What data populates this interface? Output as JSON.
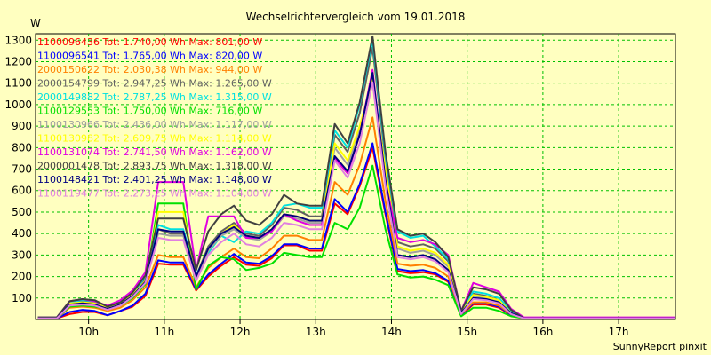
{
  "chart_data": {
    "type": "line",
    "title": "Wechselrichtervergleich vom 19.01.2018",
    "ylabel": "W",
    "xlabel": "",
    "ylim": [
      0,
      1330
    ],
    "xlim": [
      9.3,
      17.75
    ],
    "yticks": [
      100,
      200,
      300,
      400,
      500,
      600,
      700,
      800,
      900,
      1000,
      1100,
      1200,
      1300
    ],
    "xticks": [
      {
        "v": 10,
        "label": "10h"
      },
      {
        "v": 11,
        "label": "11h"
      },
      {
        "v": 12,
        "label": "12h"
      },
      {
        "v": 13,
        "label": "13h"
      },
      {
        "v": 14,
        "label": "14h"
      },
      {
        "v": 15,
        "label": "15h"
      },
      {
        "v": 16,
        "label": "16h"
      },
      {
        "v": 17,
        "label": "17h"
      }
    ],
    "grid": true,
    "legend_position": "top-left",
    "footer": "SunnyReport pinxit",
    "x": [
      9.33,
      9.58,
      9.75,
      9.92,
      10.08,
      10.25,
      10.42,
      10.58,
      10.75,
      10.92,
      11.08,
      11.25,
      11.42,
      11.58,
      11.75,
      11.92,
      12.08,
      12.25,
      12.42,
      12.58,
      12.75,
      12.92,
      13.08,
      13.25,
      13.42,
      13.58,
      13.75,
      13.92,
      14.08,
      14.25,
      14.42,
      14.58,
      14.75,
      14.92,
      15.08,
      15.25,
      15.42,
      15.58,
      15.75,
      15.92,
      16.08,
      16.25,
      16.42,
      16.58,
      16.75,
      16.92,
      17.08,
      17.25,
      17.42,
      17.58,
      17.75
    ],
    "series": [
      {
        "name": "1100096436",
        "tot": "Tot: 1.740,00 Wh",
        "max": "Max: 801,00 W",
        "color": "#FF0000",
        "values": [
          5,
          5,
          25,
          35,
          35,
          20,
          40,
          60,
          110,
          260,
          255,
          255,
          135,
          200,
          250,
          290,
          255,
          250,
          285,
          345,
          345,
          320,
          320,
          540,
          490,
          620,
          800,
          490,
          225,
          215,
          220,
          210,
          175,
          20,
          70,
          70,
          55,
          20,
          5,
          5,
          5,
          5,
          5,
          5,
          5,
          5,
          5,
          5,
          5,
          5,
          5
        ]
      },
      {
        "name": "1100096541",
        "tot": "Tot: 1.765,00 Wh",
        "max": "Max: 820,00 W",
        "color": "#0000FF",
        "values": [
          5,
          5,
          35,
          45,
          40,
          20,
          40,
          65,
          120,
          275,
          265,
          265,
          140,
          210,
          260,
          305,
          265,
          260,
          295,
          350,
          350,
          330,
          330,
          560,
          500,
          630,
          820,
          500,
          235,
          225,
          230,
          215,
          180,
          22,
          75,
          75,
          60,
          22,
          5,
          5,
          5,
          5,
          5,
          5,
          5,
          5,
          5,
          5,
          5,
          5,
          5
        ]
      },
      {
        "name": "2000150622",
        "tot": "Tot: 2.030,38 Wh",
        "max": "Max: 944,00 W",
        "color": "#FF8000",
        "values": [
          5,
          5,
          55,
          60,
          55,
          40,
          55,
          90,
          150,
          300,
          290,
          290,
          150,
          240,
          290,
          330,
          290,
          285,
          330,
          390,
          390,
          370,
          370,
          640,
          580,
          720,
          940,
          550,
          260,
          250,
          255,
          240,
          200,
          25,
          80,
          80,
          65,
          25,
          5,
          5,
          5,
          5,
          5,
          5,
          5,
          5,
          5,
          5,
          5,
          5,
          5
        ]
      },
      {
        "name": "2000154799",
        "tot": "Tot: 2.947,25 Wh",
        "max": "Max: 1.265,00 W",
        "color": "#606060",
        "values": [
          5,
          5,
          80,
          85,
          80,
          55,
          75,
          115,
          190,
          420,
          400,
          400,
          200,
          340,
          410,
          450,
          400,
          390,
          440,
          520,
          510,
          480,
          480,
          860,
          780,
          960,
          1265,
          740,
          360,
          340,
          350,
          330,
          270,
          30,
          120,
          110,
          90,
          35,
          5,
          5,
          5,
          5,
          5,
          5,
          5,
          5,
          5,
          5,
          5,
          5,
          5
        ]
      },
      {
        "name": "2000149882",
        "tot": "Tot: 2.787,25 Wh",
        "max": "Max: 1.315,00 W",
        "color": "#00E0E0",
        "values": [
          10,
          10,
          80,
          90,
          85,
          60,
          80,
          120,
          200,
          440,
          420,
          420,
          210,
          310,
          390,
          360,
          410,
          400,
          450,
          530,
          540,
          520,
          520,
          880,
          800,
          1000,
          1300,
          760,
          410,
          380,
          390,
          340,
          280,
          40,
          130,
          120,
          100,
          40,
          5,
          5,
          5,
          5,
          5,
          5,
          5,
          5,
          5,
          5,
          5,
          5,
          5
        ]
      },
      {
        "name": "1100129553",
        "tot": "Tot: 1.750,00 Wh",
        "max": "Max: 716,00 W",
        "color": "#00E000",
        "values": [
          5,
          5,
          60,
          65,
          60,
          50,
          65,
          100,
          165,
          540,
          540,
          540,
          140,
          250,
          290,
          280,
          230,
          240,
          260,
          310,
          300,
          290,
          290,
          450,
          420,
          520,
          716,
          420,
          210,
          195,
          200,
          185,
          160,
          15,
          55,
          55,
          40,
          15,
          5,
          5,
          5,
          5,
          5,
          5,
          5,
          5,
          5,
          5,
          5,
          5,
          5
        ]
      },
      {
        "name": "1100130966",
        "tot": "Tot: 2.436,00 Wh",
        "max": "Max: 1.117,00 W",
        "color": "#A0A0A0",
        "values": [
          5,
          5,
          70,
          75,
          70,
          50,
          70,
          110,
          175,
          400,
          390,
          390,
          190,
          320,
          390,
          420,
          380,
          370,
          410,
          480,
          470,
          450,
          450,
          800,
          720,
          880,
          1117,
          680,
          330,
          310,
          320,
          300,
          245,
          30,
          110,
          100,
          85,
          30,
          5,
          5,
          5,
          5,
          5,
          5,
          5,
          5,
          5,
          5,
          5,
          5,
          5
        ]
      },
      {
        "name": "1100130982",
        "tot": "Tot: 2.609,75 Wh",
        "max": "Max: 1.114,00 W",
        "color": "#FFFF00",
        "values": [
          5,
          5,
          75,
          80,
          75,
          55,
          75,
          115,
          180,
          500,
          500,
          500,
          200,
          330,
          400,
          440,
          390,
          380,
          420,
          490,
          480,
          460,
          460,
          820,
          740,
          900,
          1114,
          700,
          340,
          320,
          330,
          310,
          255,
          30,
          115,
          105,
          90,
          30,
          5,
          5,
          5,
          5,
          5,
          5,
          5,
          5,
          5,
          5,
          5,
          5,
          5
        ]
      },
      {
        "name": "1100131074",
        "tot": "Tot: 2.741,50 Wh",
        "max": "Max: 1.162,00 W",
        "color": "#E000E0",
        "values": [
          10,
          10,
          85,
          95,
          85,
          65,
          90,
          135,
          220,
          640,
          640,
          640,
          230,
          480,
          480,
          480,
          380,
          380,
          410,
          490,
          460,
          440,
          440,
          750,
          680,
          860,
          1162,
          640,
          380,
          360,
          370,
          350,
          300,
          40,
          170,
          150,
          130,
          50,
          10,
          10,
          10,
          10,
          10,
          10,
          10,
          10,
          10,
          10,
          10,
          10,
          10
        ]
      },
      {
        "name": "2000001478",
        "tot": "Tot: 2.893,75 Wh",
        "max": "Max: 1.318,00 W",
        "color": "#404040",
        "values": [
          10,
          10,
          85,
          95,
          90,
          60,
          80,
          125,
          205,
          470,
          470,
          470,
          230,
          410,
          490,
          530,
          460,
          440,
          490,
          580,
          540,
          530,
          530,
          910,
          820,
          1010,
          1318,
          780,
          420,
          390,
          400,
          360,
          290,
          40,
          150,
          140,
          120,
          45,
          5,
          5,
          5,
          5,
          5,
          5,
          5,
          5,
          5,
          5,
          5,
          5,
          5
        ]
      },
      {
        "name": "1100148421",
        "tot": "Tot: 2.401,25 Wh",
        "max": "Max: 1.148,00 W",
        "color": "#000080",
        "values": [
          5,
          5,
          70,
          75,
          70,
          50,
          70,
          110,
          175,
          420,
          410,
          410,
          200,
          330,
          400,
          430,
          390,
          380,
          420,
          490,
          480,
          460,
          460,
          760,
          690,
          860,
          1148,
          650,
          300,
          290,
          300,
          280,
          230,
          30,
          100,
          95,
          80,
          30,
          5,
          5,
          5,
          5,
          5,
          5,
          5,
          5,
          5,
          5,
          5,
          5,
          5
        ]
      },
      {
        "name": "1100119477",
        "tot": "Tot: 2.273,25 Wh",
        "max": "Max: 1.104,00 W",
        "color": "#E080E0",
        "values": [
          5,
          5,
          65,
          70,
          65,
          45,
          65,
          105,
          170,
          380,
          370,
          370,
          180,
          300,
          360,
          400,
          350,
          340,
          380,
          450,
          440,
          420,
          420,
          740,
          660,
          820,
          1104,
          620,
          290,
          280,
          290,
          270,
          220,
          25,
          95,
          90,
          75,
          25,
          5,
          5,
          5,
          5,
          5,
          5,
          5,
          5,
          5,
          5,
          5,
          5,
          5
        ]
      }
    ]
  }
}
